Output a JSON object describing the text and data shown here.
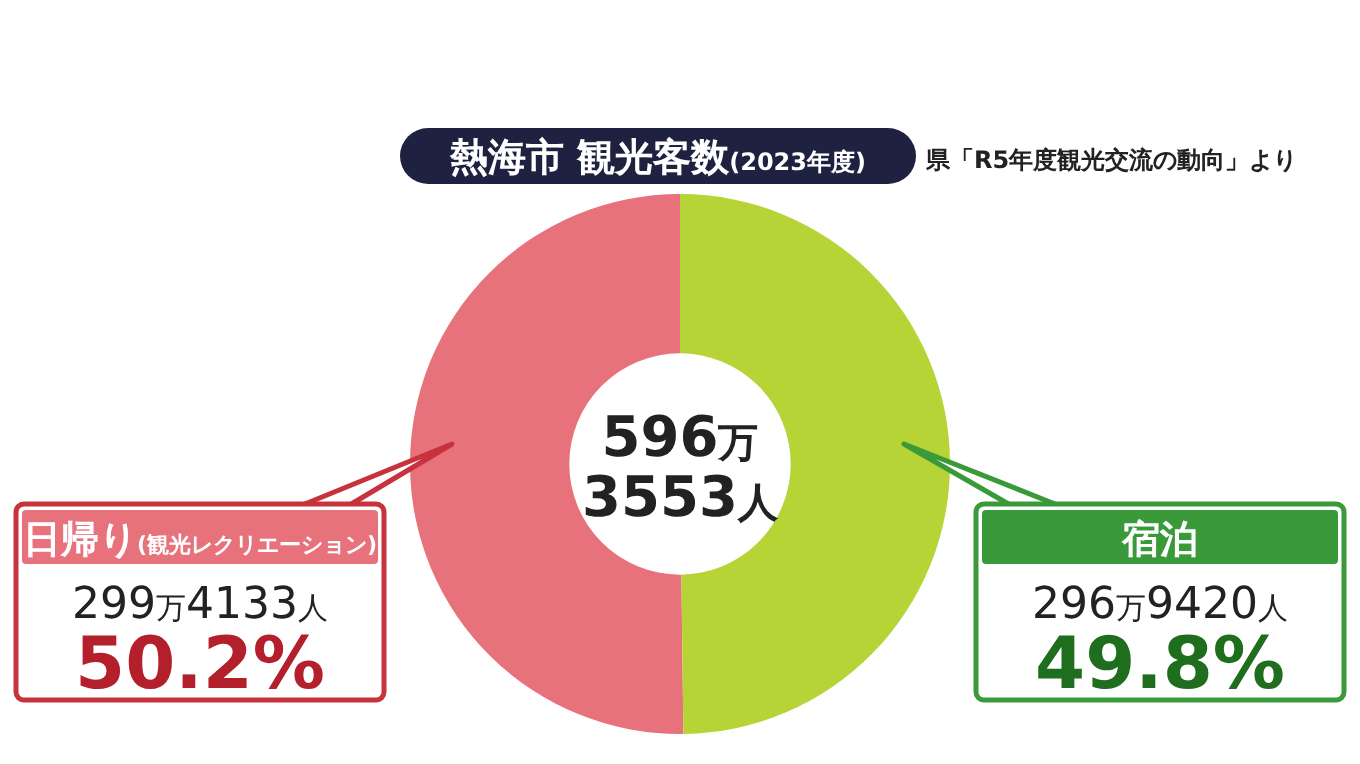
{
  "chart_data": {
    "type": "donut",
    "title": "熱海市 観光客数(2023年度)",
    "categories": [
      "日帰り(観光レクリエーション)",
      "宿泊"
    ],
    "values": [
      50.2,
      49.8
    ],
    "colors": [
      "#e8727c",
      "#b6d435"
    ],
    "value_labels": [
      "50.2%",
      "49.8%"
    ],
    "annotations": [
      "県「R5年度観光交流の動向」より",
      "596万\n3553人",
      "299万4133人",
      "296万9420人"
    ]
  }
}
